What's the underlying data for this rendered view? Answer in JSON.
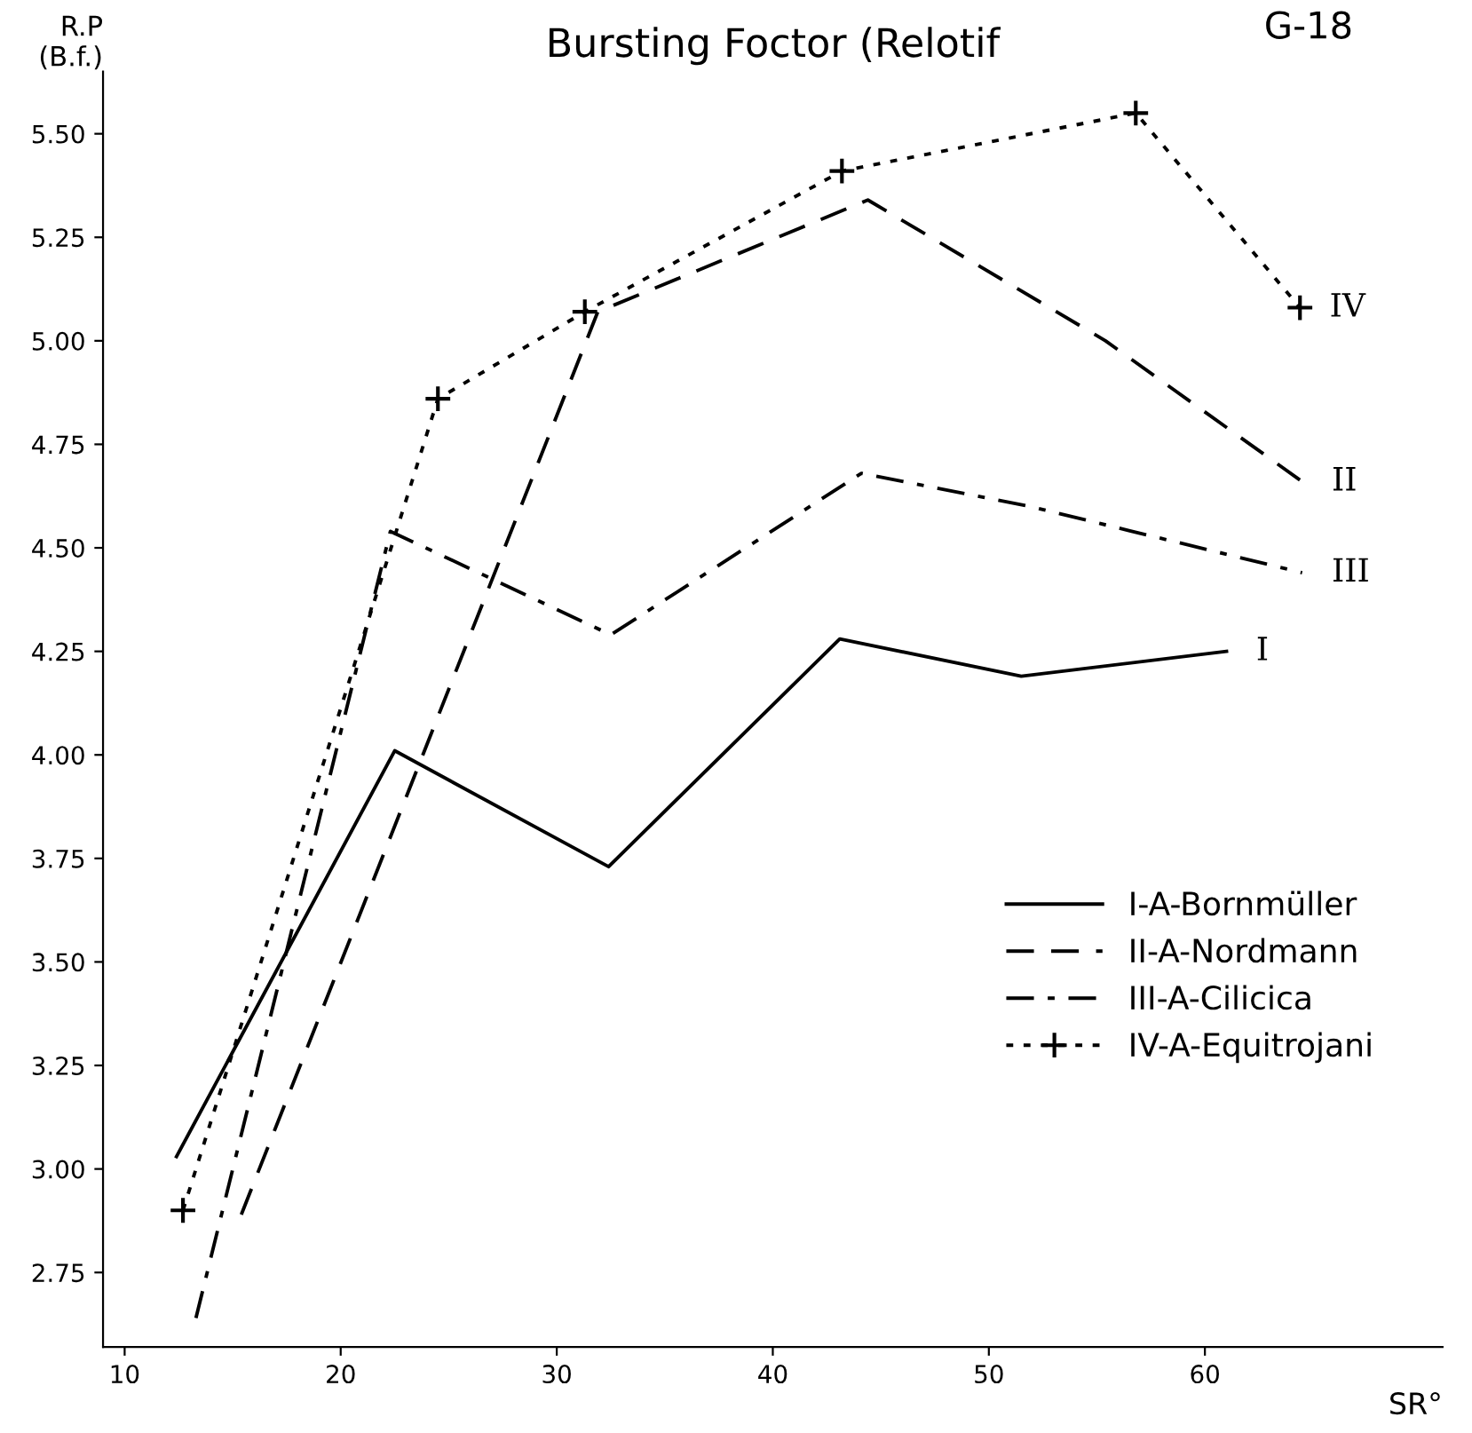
{
  "chart_data": {
    "type": "line",
    "title": "Bursting Foctor (Relotif",
    "ylabel": "R.P\n(B.f.)",
    "xlabel": "SR°",
    "xlim": [
      9,
      71
    ],
    "ylim": [
      2.57,
      5.65
    ],
    "xticks": [
      10,
      20,
      30,
      40,
      50,
      60
    ],
    "yticks": [
      {
        "value": 2.75,
        "label": "2.75"
      },
      {
        "value": 3.0,
        "label": "3.00"
      },
      {
        "value": 3.25,
        "label": "3.25"
      },
      {
        "value": 3.5,
        "label": "3.50"
      },
      {
        "value": 3.75,
        "label": "3.75"
      },
      {
        "value": 4.0,
        "label": "4.00"
      },
      {
        "value": 4.25,
        "label": "4.25"
      },
      {
        "value": 4.5,
        "label": "4.50"
      },
      {
        "value": 4.75,
        "label": "4.75"
      },
      {
        "value": 5.0,
        "label": "5.00"
      },
      {
        "value": 5.25,
        "label": "5.25"
      },
      {
        "value": 5.5,
        "label": "5.50"
      }
    ],
    "grid": false,
    "legend": "bottom right",
    "series": [
      {
        "name": "I-A-Bornmüller",
        "color": "#000000",
        "line_style": "solid",
        "marker": "none",
        "x": [
          12.4,
          22.5,
          32.4,
          43.1,
          51.5,
          61
        ],
        "values": [
          3.03,
          4.01,
          3.73,
          4.28,
          4.19,
          4.25
        ]
      },
      {
        "name": "II-A-Nordmann",
        "color": "#000000",
        "line_style": "dashed",
        "marker": "none",
        "x": [
          15.4,
          31.9,
          44.4,
          55.4,
          64.5
        ],
        "values": [
          2.89,
          5.07,
          5.34,
          5.0,
          4.66
        ]
      },
      {
        "name": "III-A-Cilicica",
        "color": "#000000",
        "line_style": "dashdot",
        "marker": "none",
        "x": [
          13.3,
          22.3,
          32.5,
          44.1,
          51.9,
          64.5
        ],
        "values": [
          2.64,
          4.54,
          4.29,
          4.68,
          4.6,
          4.44
        ]
      },
      {
        "name": "IV-A-Equitrojani",
        "color": "#000000",
        "line_style": "dotted",
        "marker": "cross",
        "x": [
          12.7,
          24.5,
          31.3,
          43.2,
          56.8,
          64.4
        ],
        "values": [
          2.9,
          4.86,
          5.07,
          5.41,
          5.55,
          5.08
        ]
      }
    ],
    "annotations": [
      "G-18",
      {
        "text": "I",
        "x": 61,
        "y": 4.25
      },
      {
        "text": "II",
        "x": 64.5,
        "y": 4.66
      },
      {
        "text": "III",
        "x": 64.5,
        "y": 4.44
      },
      {
        "text": "IV",
        "x": 64.4,
        "y": 5.08
      }
    ]
  }
}
